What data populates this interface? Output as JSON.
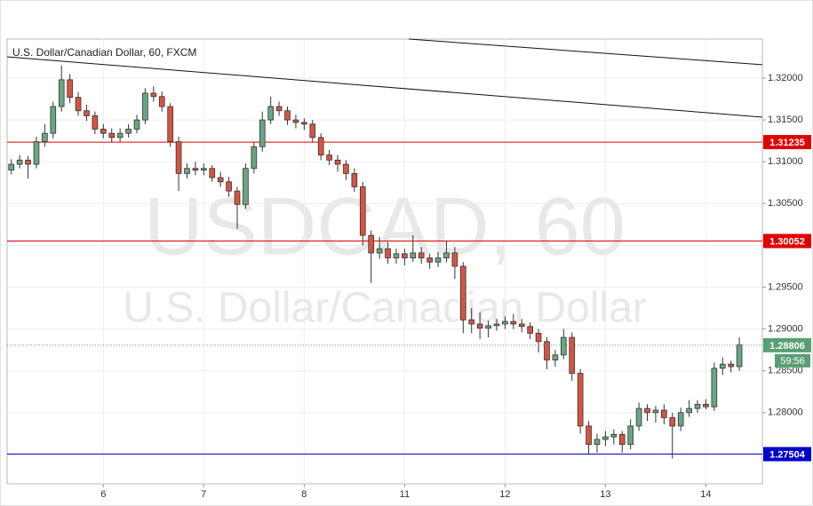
{
  "chart_data": {
    "type": "candlestick",
    "title": "U.S. Dollar/Canadian Dollar, 60, FXCM",
    "watermark": {
      "symbol": "USDCAD, 60",
      "description": "U.S. Dollar/Canadian Dollar"
    },
    "up_color": "#6ba583",
    "down_color": "#d75442",
    "x": [
      2,
      4,
      6,
      8,
      10,
      12,
      14,
      16,
      18,
      20,
      22,
      24,
      26,
      28,
      30,
      32,
      34,
      36,
      38,
      40,
      42,
      44,
      46,
      48,
      50,
      52,
      54,
      56,
      58,
      60,
      62,
      64,
      66,
      68,
      70,
      72,
      74,
      76,
      78,
      80,
      82,
      84,
      86,
      88,
      90,
      92,
      94,
      96,
      98,
      100,
      102,
      104,
      106,
      108,
      110,
      112,
      114,
      116,
      118,
      120,
      122,
      124,
      126,
      128,
      130,
      132,
      134,
      136,
      138,
      140,
      142,
      144,
      146,
      148,
      150,
      152,
      154,
      156,
      158,
      160,
      162,
      164,
      166,
      168,
      170,
      172,
      174,
      176
    ],
    "open": [
      1.309,
      1.3097,
      1.3102,
      1.3097,
      1.3124,
      1.3134,
      1.3166,
      1.3198,
      1.3177,
      1.3161,
      1.3155,
      1.3139,
      1.3134,
      1.3129,
      1.3134,
      1.3139,
      1.315,
      1.3182,
      1.3178,
      1.3166,
      1.3124,
      1.3086,
      1.3092,
      1.309,
      1.3092,
      1.3081,
      1.3076,
      1.3065,
      1.3049,
      1.3092,
      1.3118,
      1.315,
      1.3166,
      1.3161,
      1.315,
      1.3147,
      1.3145,
      1.3129,
      1.3108,
      1.3102,
      1.3097,
      1.3086,
      1.307,
      1.3012,
      1.2991,
      1.2996,
      1.2985,
      1.299,
      1.2985,
      1.2991,
      1.2985,
      1.298,
      1.2985,
      1.2991,
      1.2975,
      1.2911,
      1.2906,
      1.2901,
      1.2904,
      1.2906,
      1.2909,
      1.2906,
      1.2903,
      1.2895,
      1.2885,
      1.2863,
      1.2869,
      1.289,
      1.2847,
      1.2784,
      1.2762,
      1.2768,
      1.2771,
      1.2774,
      1.2762,
      1.2784,
      1.2805,
      1.28,
      1.2803,
      1.2794,
      1.2784,
      1.28,
      1.2805,
      1.281,
      1.2807,
      1.2853,
      1.2858,
      1.2855
    ],
    "high": [
      1.3103,
      1.3108,
      1.3107,
      1.313,
      1.3145,
      1.3172,
      1.3215,
      1.3205,
      1.3183,
      1.3168,
      1.316,
      1.3145,
      1.314,
      1.314,
      1.3145,
      1.3156,
      1.3188,
      1.319,
      1.3184,
      1.317,
      1.313,
      1.3098,
      1.31,
      1.3098,
      1.3096,
      1.3088,
      1.3082,
      1.307,
      1.3098,
      1.3124,
      1.316,
      1.3178,
      1.3172,
      1.3166,
      1.3156,
      1.3152,
      1.315,
      1.3134,
      1.3114,
      1.3108,
      1.3102,
      1.3092,
      1.3076,
      1.3018,
      1.301,
      1.3004,
      1.2996,
      1.2996,
      1.3012,
      1.2998,
      1.299,
      1.2992,
      1.3005,
      1.2998,
      1.298,
      1.2925,
      1.292,
      1.291,
      1.2912,
      1.2915,
      1.2918,
      1.2912,
      1.2908,
      1.29,
      1.289,
      1.2875,
      1.29,
      1.2896,
      1.2852,
      1.279,
      1.2775,
      1.2778,
      1.278,
      1.2778,
      1.2792,
      1.2812,
      1.281,
      1.2808,
      1.281,
      1.28,
      1.2806,
      1.2815,
      1.2815,
      1.2816,
      1.286,
      1.2866,
      1.2862,
      1.289
    ],
    "low": [
      1.3085,
      1.3092,
      1.308,
      1.3092,
      1.3118,
      1.3128,
      1.316,
      1.317,
      1.3155,
      1.3149,
      1.3133,
      1.3128,
      1.3123,
      1.3124,
      1.3129,
      1.3134,
      1.3145,
      1.3172,
      1.316,
      1.3118,
      1.3065,
      1.308,
      1.3084,
      1.3084,
      1.3076,
      1.307,
      1.3058,
      1.302,
      1.3044,
      1.3086,
      1.3112,
      1.3145,
      1.3155,
      1.3144,
      1.314,
      1.3138,
      1.3123,
      1.3102,
      1.3096,
      1.3088,
      1.3078,
      1.3064,
      1.3,
      1.2955,
      1.2984,
      1.2978,
      1.2978,
      1.2976,
      1.298,
      1.2978,
      1.2972,
      1.2974,
      1.298,
      1.296,
      1.2895,
      1.2895,
      1.2888,
      1.289,
      1.2898,
      1.29,
      1.29,
      1.2896,
      1.2888,
      1.2872,
      1.2852,
      1.2855,
      1.2864,
      1.2838,
      1.2775,
      1.275,
      1.2752,
      1.276,
      1.2762,
      1.2752,
      1.2756,
      1.2778,
      1.279,
      1.2788,
      1.2786,
      1.2745,
      1.2778,
      1.2795,
      1.28,
      1.2804,
      1.2802,
      1.2845,
      1.2848,
      1.285
    ],
    "close": [
      1.3097,
      1.3102,
      1.3097,
      1.3124,
      1.3134,
      1.3166,
      1.3198,
      1.3177,
      1.3161,
      1.3155,
      1.3139,
      1.3134,
      1.3129,
      1.3134,
      1.3139,
      1.315,
      1.3182,
      1.3178,
      1.3166,
      1.3124,
      1.3086,
      1.3092,
      1.309,
      1.3092,
      1.3081,
      1.3076,
      1.3065,
      1.3049,
      1.3092,
      1.3118,
      1.315,
      1.3166,
      1.3161,
      1.315,
      1.3147,
      1.3145,
      1.3129,
      1.3108,
      1.3102,
      1.3097,
      1.3086,
      1.307,
      1.3012,
      1.2991,
      1.2996,
      1.2985,
      1.299,
      1.2985,
      1.2991,
      1.2985,
      1.298,
      1.2985,
      1.2991,
      1.2975,
      1.2911,
      1.2906,
      1.2901,
      1.2904,
      1.2906,
      1.2909,
      1.2906,
      1.2903,
      1.2895,
      1.2885,
      1.2863,
      1.2869,
      1.289,
      1.2847,
      1.2784,
      1.2762,
      1.2768,
      1.2771,
      1.2774,
      1.2762,
      1.2784,
      1.2805,
      1.28,
      1.2803,
      1.2794,
      1.2784,
      1.28,
      1.2805,
      1.281,
      1.2807,
      1.2853,
      1.2858,
      1.2855,
      1.2881
    ],
    "xlim": [
      1,
      181.5
    ],
    "ylim": [
      1.27149,
      1.32467
    ],
    "xticks": [
      {
        "value": 24,
        "label": "6"
      },
      {
        "value": 48,
        "label": "7"
      },
      {
        "value": 72,
        "label": "8"
      },
      {
        "value": 96,
        "label": "11"
      },
      {
        "value": 120,
        "label": "12"
      },
      {
        "value": 144,
        "label": "13"
      },
      {
        "value": 168,
        "label": "14"
      }
    ],
    "yticks": [
      {
        "value": 1.28,
        "label": "1.28000"
      },
      {
        "value": 1.285,
        "label": "1.28500"
      },
      {
        "value": 1.29,
        "label": "1.29000"
      },
      {
        "value": 1.295,
        "label": "1.29500"
      },
      {
        "value": 1.3,
        "label": "1.30000"
      },
      {
        "value": 1.305,
        "label": "1.30500"
      },
      {
        "value": 1.31,
        "label": "1.31000"
      },
      {
        "value": 1.315,
        "label": "1.31500"
      },
      {
        "value": 1.32,
        "label": "1.32000"
      }
    ],
    "grid": true,
    "levels": [
      {
        "value": 1.31235,
        "color": "#e00000"
      },
      {
        "value": 1.30052,
        "color": "#e00000"
      },
      {
        "value": 1.27504,
        "color": "#0000cc"
      }
    ],
    "trendlines": [
      {
        "x": [
          1,
          181.5
        ],
        "y": [
          1.32255,
          1.31533
        ]
      },
      {
        "x": [
          97,
          181.5
        ],
        "y": [
          1.32467,
          1.3216
        ]
      }
    ],
    "current_price": {
      "value": 1.28806,
      "countdown": "59:56",
      "color": "#5a9e74"
    }
  }
}
